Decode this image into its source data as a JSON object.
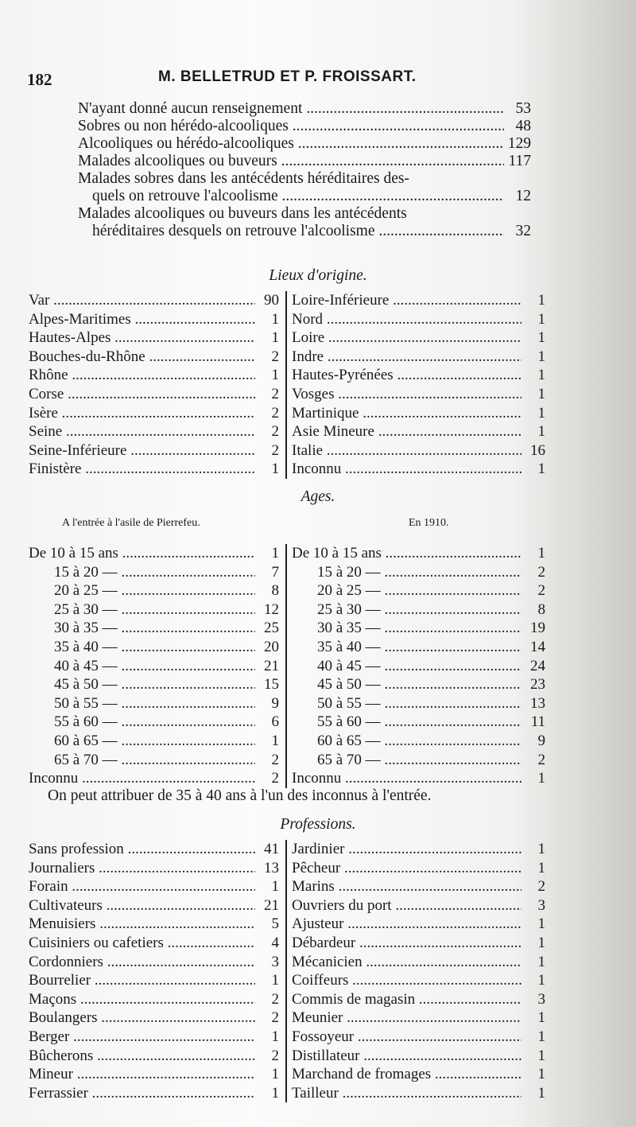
{
  "header": {
    "page_number": "182",
    "title": "M. BELLETRUD ET P. FROISSART."
  },
  "intro": [
    {
      "label": "N'ayant donné aucun renseignement",
      "value": "53"
    },
    {
      "label": "Sobres ou non hérédo-alcooliques",
      "value": "48"
    },
    {
      "label": "Alcooliques ou hérédo-alcooliques",
      "value": "129"
    },
    {
      "label": "Malades alcooliques ou buveurs",
      "value": "117"
    },
    {
      "label": "Malades sobres dans les antécédents héréditaires des-",
      "value": ""
    },
    {
      "label": "quels on retrouve l'alcoolisme",
      "value": "12"
    },
    {
      "label": "Malades alcooliques ou buveurs dans les antécédents",
      "value": ""
    },
    {
      "label": "héréditaires desquels on retrouve l'alcoolisme",
      "value": "32"
    }
  ],
  "lieux": {
    "title": "Lieux d'origine.",
    "left": [
      [
        "Var",
        "90"
      ],
      [
        "Alpes-Maritimes",
        "1"
      ],
      [
        "Hautes-Alpes",
        "1"
      ],
      [
        "Bouches-du-Rhône",
        "2"
      ],
      [
        "Rhône",
        "1"
      ],
      [
        "Corse",
        "2"
      ],
      [
        "Isère",
        "2"
      ],
      [
        "Seine",
        "2"
      ],
      [
        "Seine-Inférieure",
        "2"
      ],
      [
        "Finistère",
        "1"
      ]
    ],
    "right": [
      [
        "Loire-Inférieure",
        "1"
      ],
      [
        "Nord",
        "1"
      ],
      [
        "Loire",
        "1"
      ],
      [
        "Indre",
        "1"
      ],
      [
        "Hautes-Pyrénées",
        "1"
      ],
      [
        "Vosges",
        "1"
      ],
      [
        "Martinique",
        "1"
      ],
      [
        "Asie Mineure",
        "1"
      ],
      [
        "Italie",
        "16"
      ],
      [
        "Inconnu",
        "1"
      ]
    ]
  },
  "ages": {
    "title": "Ages.",
    "left_header": "A l'entrée à l'asile de Pierrefeu.",
    "right_header": "En 1910.",
    "left": [
      [
        "De 10 à 15 ans",
        "1"
      ],
      [
        "15 à 20 —",
        "7"
      ],
      [
        "20 à 25 —",
        "8"
      ],
      [
        "25 à 30 —",
        "12"
      ],
      [
        "30 à 35 —",
        "25"
      ],
      [
        "35 à 40 —",
        "20"
      ],
      [
        "40 à 45 —",
        "21"
      ],
      [
        "45 à 50 —",
        "15"
      ],
      [
        "50 à 55 —",
        "9"
      ],
      [
        "55 à 60 —",
        "6"
      ],
      [
        "60 à 65 —",
        "1"
      ],
      [
        "65 à 70 —",
        "2"
      ],
      [
        "Inconnu",
        "2"
      ]
    ],
    "right": [
      [
        "De 10 à 15 ans",
        "1"
      ],
      [
        "15 à 20 —",
        "2"
      ],
      [
        "20 à 25 —",
        "2"
      ],
      [
        "25 à 30 —",
        "8"
      ],
      [
        "30 à 35 —",
        "19"
      ],
      [
        "35 à 40 —",
        "14"
      ],
      [
        "40 à 45 —",
        "24"
      ],
      [
        "45 à 50 —",
        "23"
      ],
      [
        "50 à 55 —",
        "13"
      ],
      [
        "55 à 60 —",
        "11"
      ],
      [
        "60 à 65 —",
        "9"
      ],
      [
        "65 à 70 —",
        "2"
      ],
      [
        "Inconnu",
        "1"
      ]
    ],
    "note": "On peut attribuer de 35 à 40 ans à l'un des inconnus à l'entrée."
  },
  "professions": {
    "title": "Professions.",
    "left": [
      [
        "Sans profession",
        "41"
      ],
      [
        "Journaliers",
        "13"
      ],
      [
        "Forain",
        "1"
      ],
      [
        "Cultivateurs",
        "21"
      ],
      [
        "Menuisiers",
        "5"
      ],
      [
        "Cuisiniers ou cafetiers",
        "4"
      ],
      [
        "Cordonniers",
        "3"
      ],
      [
        "Bourrelier",
        "1"
      ],
      [
        "Maçons",
        "2"
      ],
      [
        "Boulangers",
        "2"
      ],
      [
        "Berger",
        "1"
      ],
      [
        "Bûcherons",
        "2"
      ],
      [
        "Mineur",
        "1"
      ],
      [
        "Ferrassier",
        "1"
      ]
    ],
    "right": [
      [
        "Jardinier",
        "1"
      ],
      [
        "Pêcheur",
        "1"
      ],
      [
        "Marins",
        "2"
      ],
      [
        "Ouvriers du port",
        "3"
      ],
      [
        "Ajusteur",
        "1"
      ],
      [
        "Débardeur",
        "1"
      ],
      [
        "Mécanicien",
        "1"
      ],
      [
        "Coiffeurs",
        "1"
      ],
      [
        "Commis de magasin",
        "3"
      ],
      [
        "Meunier",
        "1"
      ],
      [
        "Fossoyeur",
        "1"
      ],
      [
        "Distillateur",
        "1"
      ],
      [
        "Marchand de fromages",
        "1"
      ],
      [
        "Tailleur",
        "1"
      ]
    ]
  }
}
